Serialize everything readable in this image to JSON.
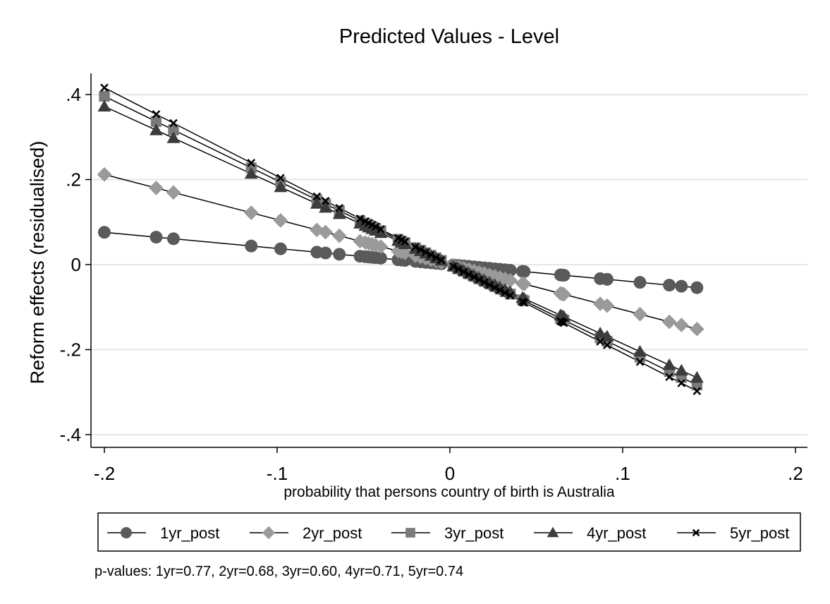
{
  "chart_data": {
    "type": "line",
    "title": "Predicted Values - Level",
    "xlabel": "probability that persons country of birth is Australia",
    "ylabel": "Reform effects (residualised)",
    "xlim": [
      -0.2,
      0.2
    ],
    "ylim": [
      -0.4,
      0.4
    ],
    "x_ticks": [
      -0.2,
      -0.1,
      0,
      0.1,
      0.2
    ],
    "x_tick_labels": [
      "-.2",
      "-.1",
      "0",
      ".1",
      ".2"
    ],
    "y_ticks": [
      -0.4,
      -0.2,
      0,
      0.2,
      0.4
    ],
    "y_tick_labels": [
      "-.4",
      "-.2",
      "0",
      ".2",
      ".4"
    ],
    "grid": true,
    "x": [
      -0.2,
      -0.17,
      -0.16,
      -0.115,
      -0.098,
      -0.077,
      -0.072,
      -0.064,
      -0.052,
      -0.049,
      -0.047,
      -0.045,
      -0.043,
      -0.04,
      -0.03,
      -0.028,
      -0.026,
      -0.02,
      -0.017,
      -0.014,
      -0.011,
      -0.008,
      -0.005,
      0.002,
      0.005,
      0.008,
      0.011,
      0.014,
      0.017,
      0.02,
      0.023,
      0.026,
      0.029,
      0.032,
      0.035,
      0.042,
      0.043,
      0.064,
      0.065,
      0.066,
      0.087,
      0.091,
      0.11,
      0.127,
      0.134,
      0.143
    ],
    "series": [
      {
        "name": "1yr_post",
        "marker": "circle",
        "color": "#5a5a5a",
        "intercept": 0,
        "slope": -0.38
      },
      {
        "name": "2yr_post",
        "marker": "diamond",
        "color": "#9a9a9a",
        "intercept": 0,
        "slope": -1.06
      },
      {
        "name": "3yr_post",
        "marker": "square",
        "color": "#7a7a7a",
        "intercept": 0,
        "slope": -1.98
      },
      {
        "name": "4yr_post",
        "marker": "triangle",
        "color": "#3c3c3c",
        "intercept": 0,
        "slope": -1.86
      },
      {
        "name": "5yr_post",
        "marker": "x",
        "color": "#000000",
        "intercept": 0,
        "slope": -2.08
      }
    ],
    "legend_position": "bottom",
    "note": "p-values: 1yr=0.77,  2yr=0.68,  3yr=0.60,  4yr=0.71,  5yr=0.74"
  }
}
